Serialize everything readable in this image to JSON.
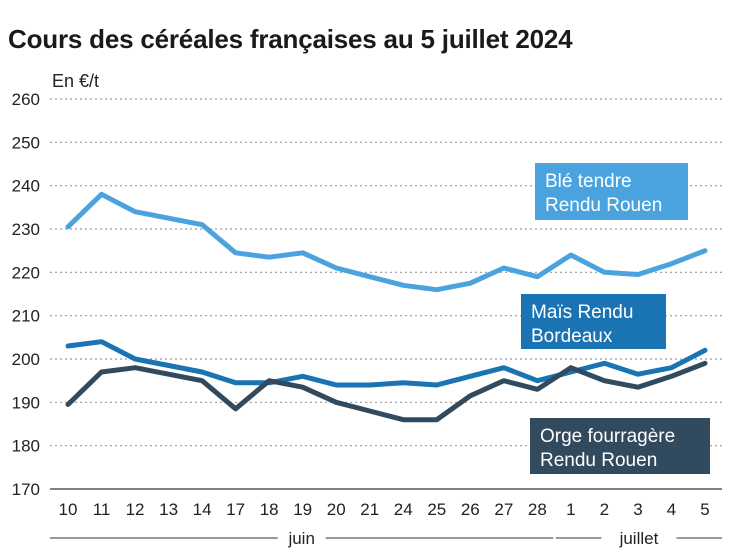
{
  "title": "Cours des céréales françaises au 5 juillet 2024",
  "unit_label": "En €/t",
  "chart_data": {
    "type": "line",
    "title": "Cours des céréales françaises au 5 juillet 2024",
    "ylabel": "En €/t",
    "xlabel": "",
    "ylim": [
      170,
      260
    ],
    "yticks": [
      170,
      180,
      190,
      200,
      210,
      220,
      230,
      240,
      250,
      260
    ],
    "grid": true,
    "categories": [
      "10",
      "11",
      "12",
      "13",
      "14",
      "17",
      "18",
      "19",
      "20",
      "21",
      "24",
      "25",
      "26",
      "27",
      "28",
      "1",
      "2",
      "3",
      "4",
      "5"
    ],
    "months": [
      {
        "label": "juin",
        "from": 0,
        "to": 14
      },
      {
        "label": "juillet",
        "from": 15,
        "to": 19
      }
    ],
    "series": [
      {
        "name": "Blé tendre Rendu Rouen",
        "color": "#4aa3df",
        "values": [
          230.5,
          238,
          234,
          232.5,
          231,
          224.5,
          223.5,
          224.5,
          221,
          219,
          217,
          216,
          217.5,
          221,
          219,
          224,
          220,
          219.5,
          222,
          225
        ]
      },
      {
        "name": "Maïs Rendu Bordeaux",
        "color": "#1a74b3",
        "values": [
          203,
          204,
          200,
          198.5,
          197,
          194.5,
          194.5,
          196,
          194,
          194,
          194.5,
          194,
          196,
          198,
          195,
          197,
          199,
          196.5,
          198,
          202
        ]
      },
      {
        "name": "Orge fourragère Rendu Rouen",
        "color": "#324a5e",
        "values": [
          189.5,
          197,
          198,
          196.5,
          195,
          188.5,
          195,
          193.5,
          190,
          188,
          186,
          186,
          191.5,
          195,
          193,
          198,
          195,
          193.5,
          196,
          199
        ]
      }
    ],
    "legend": [
      {
        "lines": [
          "Blé tendre",
          "Rendu Rouen"
        ],
        "bg": "#4aa3df"
      },
      {
        "lines": [
          "Maïs Rendu",
          "Bordeaux"
        ],
        "bg": "#1a74b3"
      },
      {
        "lines": [
          "Orge fourragère",
          "Rendu Rouen"
        ],
        "bg": "#324a5e"
      }
    ]
  }
}
